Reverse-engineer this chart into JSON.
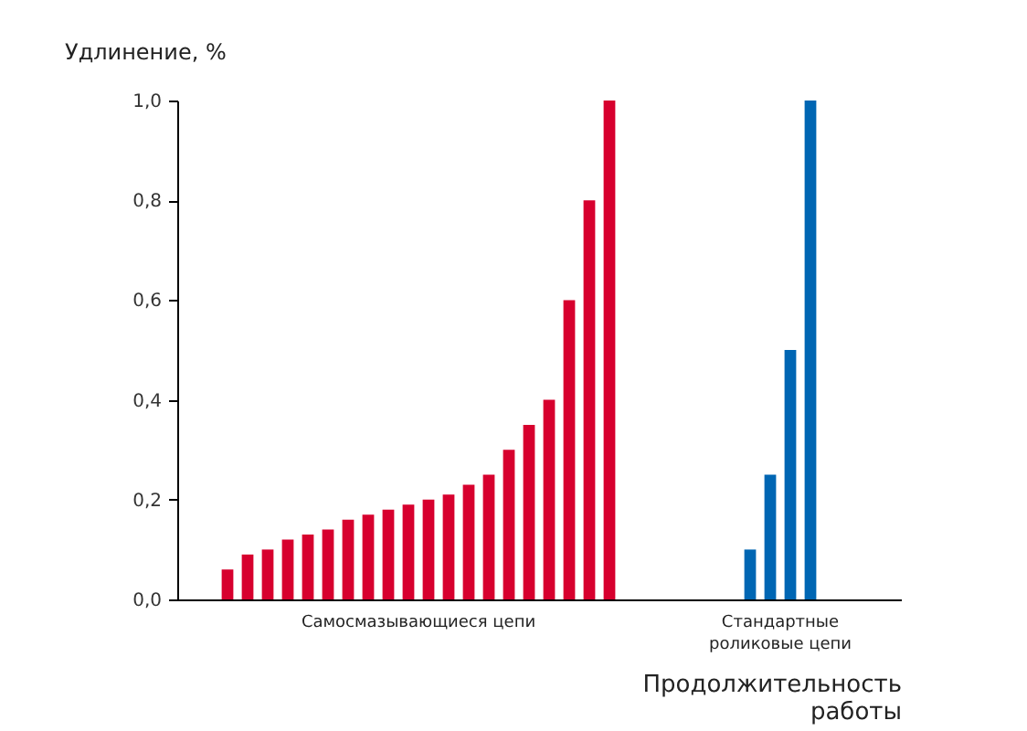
{
  "chart_data": {
    "type": "bar",
    "ylabel": "Удлинение, %",
    "xlabel": "Продолжительность работы",
    "categories": [
      null,
      null,
      null,
      null,
      null,
      null,
      null,
      null,
      null,
      null,
      null,
      null,
      null,
      null,
      null,
      null,
      null,
      null,
      null,
      null,
      null,
      null,
      null,
      null,
      null,
      null,
      null,
      null,
      null,
      null,
      null,
      null,
      null,
      null,
      null,
      null
    ],
    "series": [
      {
        "color": "#d7002e",
        "values": [
          null,
          null,
          0.06,
          0.09,
          0.1,
          0.12,
          0.13,
          0.14,
          0.16,
          0.17,
          0.18,
          0.19,
          0.2,
          0.21,
          0.23,
          0.25,
          0.3,
          0.35,
          0.4,
          0.6,
          0.8,
          1.0,
          null,
          null,
          null,
          null,
          null,
          null,
          null,
          null,
          null,
          null,
          null,
          null,
          null,
          null
        ]
      },
      {
        "color": "#0066b3",
        "values": [
          null,
          null,
          null,
          null,
          null,
          null,
          null,
          null,
          null,
          null,
          null,
          null,
          null,
          null,
          null,
          null,
          null,
          null,
          null,
          null,
          null,
          null,
          null,
          null,
          null,
          null,
          null,
          null,
          0.1,
          0.25,
          0.5,
          1.0,
          null,
          null,
          null,
          null
        ]
      }
    ],
    "annotations": [
      "Самосмазывающиеся цепи",
      "Стандартные\nроликовые цепи"
    ],
    "ylim": [
      0,
      1.0
    ],
    "yticks": [
      {
        "value": 0,
        "label": "0,0"
      },
      {
        "value": 0.2,
        "label": "0,2"
      },
      {
        "value": 0.4,
        "label": "0,4"
      },
      {
        "value": 0.6,
        "label": "0,6"
      },
      {
        "value": 0.8,
        "label": "0,8"
      },
      {
        "value": 1.0,
        "label": "1,0"
      }
    ],
    "tick_labels": "y",
    "grid": false
  }
}
